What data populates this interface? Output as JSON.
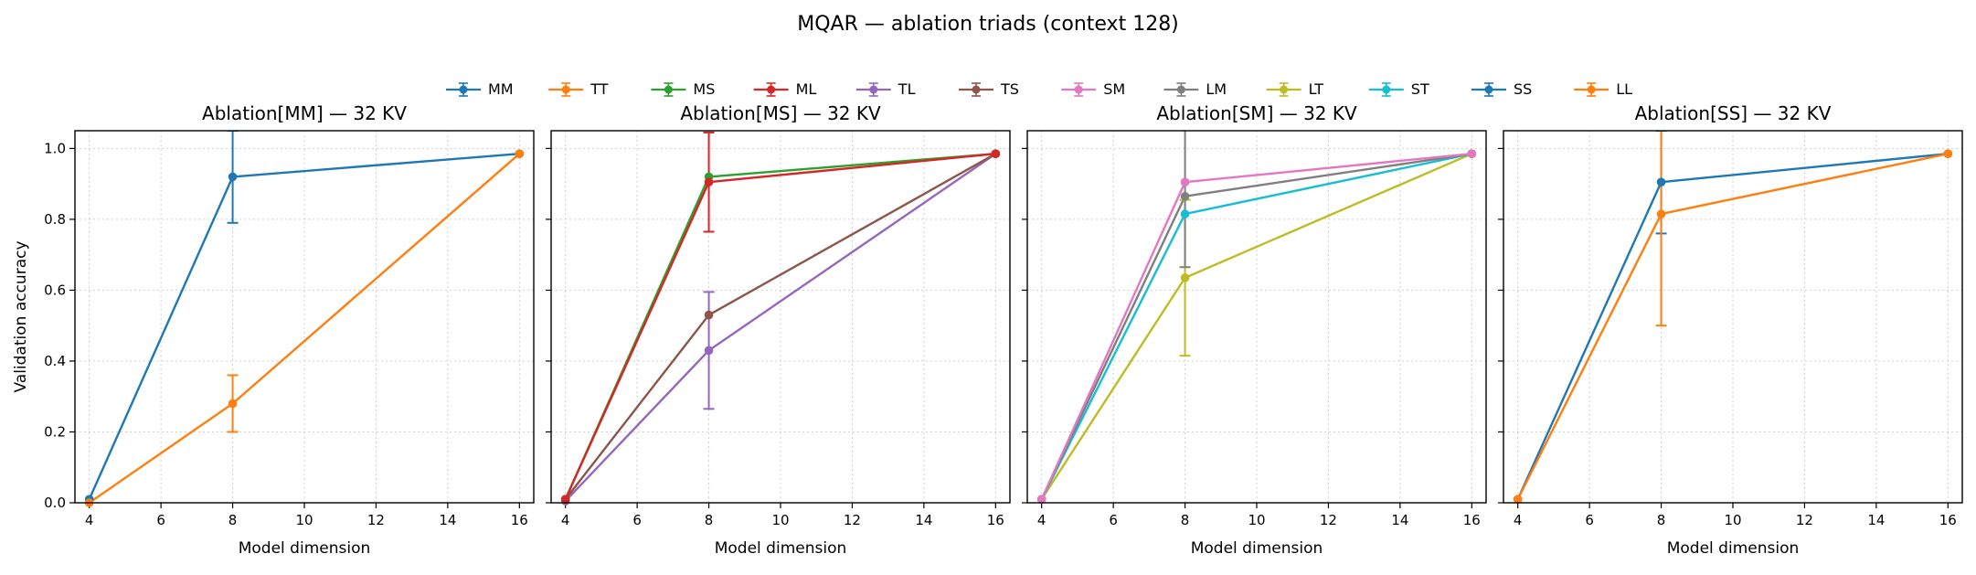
{
  "figure": {
    "title": "MQAR — ablation triads (context 128)",
    "legend": [
      {
        "name": "MM",
        "color": "#1f77b4"
      },
      {
        "name": "TT",
        "color": "#ff7f0e"
      },
      {
        "name": "MS",
        "color": "#2ca02c"
      },
      {
        "name": "ML",
        "color": "#d62728"
      },
      {
        "name": "TL",
        "color": "#9467bd"
      },
      {
        "name": "TS",
        "color": "#8c564b"
      },
      {
        "name": "SM",
        "color": "#e377c2"
      },
      {
        "name": "LM",
        "color": "#7f7f7f"
      },
      {
        "name": "LT",
        "color": "#bcbd22"
      },
      {
        "name": "ST",
        "color": "#17becf"
      },
      {
        "name": "SS",
        "color": "#1f77b4"
      },
      {
        "name": "LL",
        "color": "#ff7f0e"
      }
    ]
  },
  "chart_data": [
    {
      "type": "line",
      "title": "Ablation[MM] — 32 KV",
      "xlabel": "Model dimension",
      "ylabel": "Validation accuracy",
      "xlim": [
        3.6,
        16.4
      ],
      "ylim": [
        0.0,
        1.05
      ],
      "xticks": [
        4,
        6,
        8,
        10,
        12,
        14,
        16
      ],
      "yticks": [
        0.0,
        0.2,
        0.4,
        0.6,
        0.8,
        1.0
      ],
      "grid": true,
      "series": [
        {
          "name": "MM",
          "color": "#1f77b4",
          "x": [
            4,
            8,
            16
          ],
          "y": [
            0.01,
            0.92,
            0.985
          ],
          "err": [
            0.0,
            0.13,
            0.0
          ]
        },
        {
          "name": "TT",
          "color": "#ff7f0e",
          "x": [
            4,
            8,
            16
          ],
          "y": [
            0.0,
            0.28,
            0.985
          ],
          "err": [
            0.0,
            0.08,
            0.0
          ]
        }
      ]
    },
    {
      "type": "line",
      "title": "Ablation[MS] — 32 KV",
      "xlabel": "Model dimension",
      "ylabel": "",
      "xlim": [
        3.6,
        16.4
      ],
      "ylim": [
        0.0,
        1.05
      ],
      "xticks": [
        4,
        6,
        8,
        10,
        12,
        14,
        16
      ],
      "yticks": [
        0.0,
        0.2,
        0.4,
        0.6,
        0.8,
        1.0
      ],
      "grid": true,
      "series": [
        {
          "name": "TL",
          "color": "#9467bd",
          "x": [
            4,
            8,
            16
          ],
          "y": [
            0.005,
            0.43,
            0.985
          ],
          "err": [
            0.0,
            0.165,
            0.0
          ]
        },
        {
          "name": "TS",
          "color": "#8c564b",
          "x": [
            4,
            8,
            16
          ],
          "y": [
            0.01,
            0.53,
            0.985
          ],
          "err": [
            0.0,
            0.0,
            0.0
          ]
        },
        {
          "name": "MS",
          "color": "#2ca02c",
          "x": [
            4,
            8,
            16
          ],
          "y": [
            0.01,
            0.92,
            0.985
          ],
          "err": [
            0.0,
            0.0,
            0.0
          ]
        },
        {
          "name": "ML",
          "color": "#d62728",
          "x": [
            4,
            8,
            16
          ],
          "y": [
            0.01,
            0.905,
            0.985
          ],
          "err": [
            0.0,
            0.14,
            0.0
          ]
        }
      ]
    },
    {
      "type": "line",
      "title": "Ablation[SM] — 32 KV",
      "xlabel": "Model dimension",
      "ylabel": "",
      "xlim": [
        3.6,
        16.4
      ],
      "ylim": [
        0.0,
        1.05
      ],
      "xticks": [
        4,
        6,
        8,
        10,
        12,
        14,
        16
      ],
      "yticks": [
        0.0,
        0.2,
        0.4,
        0.6,
        0.8,
        1.0
      ],
      "grid": true,
      "series": [
        {
          "name": "LT",
          "color": "#bcbd22",
          "x": [
            4,
            8,
            16
          ],
          "y": [
            0.01,
            0.635,
            0.985
          ],
          "err": [
            0.0,
            0.22,
            0.0
          ]
        },
        {
          "name": "ST",
          "color": "#17becf",
          "x": [
            4,
            8,
            16
          ],
          "y": [
            0.01,
            0.815,
            0.985
          ],
          "err": [
            0.0,
            0.0,
            0.0
          ]
        },
        {
          "name": "LM",
          "color": "#7f7f7f",
          "x": [
            4,
            8,
            16
          ],
          "y": [
            0.01,
            0.865,
            0.985
          ],
          "err": [
            0.0,
            0.2,
            0.0
          ]
        },
        {
          "name": "SM",
          "color": "#e377c2",
          "x": [
            4,
            8,
            16
          ],
          "y": [
            0.01,
            0.905,
            0.985
          ],
          "err": [
            0.0,
            0.0,
            0.0
          ]
        }
      ]
    },
    {
      "type": "line",
      "title": "Ablation[SS] — 32 KV",
      "xlabel": "Model dimension",
      "ylabel": "",
      "xlim": [
        3.6,
        16.4
      ],
      "ylim": [
        0.0,
        1.05
      ],
      "xticks": [
        4,
        6,
        8,
        10,
        12,
        14,
        16
      ],
      "yticks": [
        0.0,
        0.2,
        0.4,
        0.6,
        0.8,
        1.0
      ],
      "grid": true,
      "series": [
        {
          "name": "SS",
          "color": "#1f77b4",
          "x": [
            4,
            8,
            16
          ],
          "y": [
            0.01,
            0.905,
            0.985
          ],
          "err": [
            0.0,
            0.145,
            0.0
          ]
        },
        {
          "name": "LL",
          "color": "#ff7f0e",
          "x": [
            4,
            8,
            16
          ],
          "y": [
            0.01,
            0.815,
            0.985
          ],
          "err": [
            0.0,
            0.315,
            0.0
          ]
        }
      ]
    }
  ]
}
